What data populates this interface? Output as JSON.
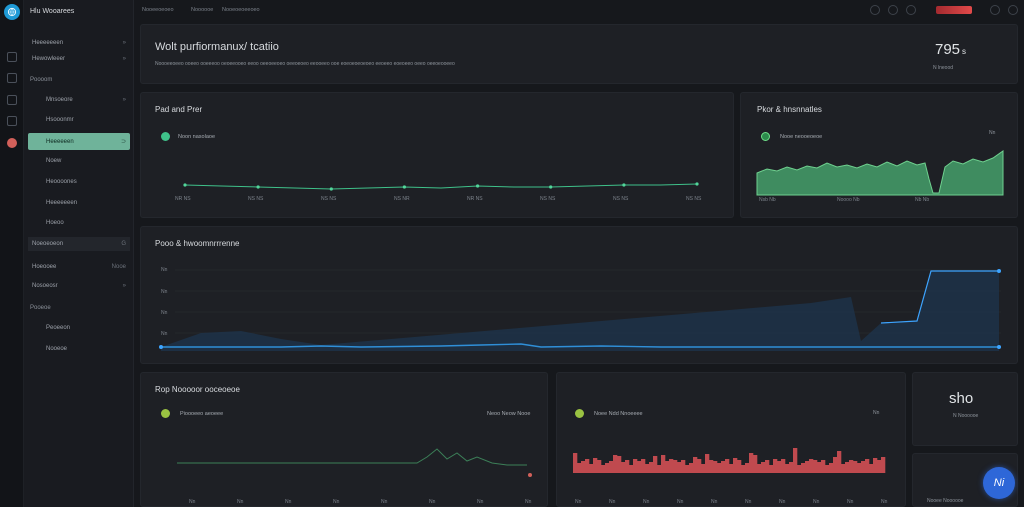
{
  "sidebar": {
    "title": "Hlu Wooarees",
    "items": [
      {
        "label": "Heeeeeeen",
        "chev": "»"
      },
      {
        "label": "Hewowleeer",
        "chev": "»"
      },
      {
        "label": "Mnsoeore",
        "chev": "»"
      },
      {
        "label": "Hsooonmr"
      },
      {
        "label": "Heeeeeen",
        "chev": "⊃"
      },
      {
        "label": "Noew"
      },
      {
        "label": "Heoooones"
      },
      {
        "label": "Heeeeeeen"
      },
      {
        "label": "Hoeoo"
      },
      {
        "label": "Noeoeoeon",
        "chev": "G"
      },
      {
        "label": "Hoeooee",
        "chev": "Nooe"
      },
      {
        "label": "Nosoeosr",
        "chev": "»"
      },
      {
        "label": "Peoeeon"
      },
      {
        "label": "Nooeoe"
      }
    ],
    "section_one": "Poooom",
    "section_two": "Pooeoe"
  },
  "topbar": {
    "links": [
      "Nooeeoeoeo",
      "Noooooe",
      "Nooeoeoeeoeo"
    ]
  },
  "header_panel": {
    "title": "Wolt purfiormanux/ tcatiio",
    "subtitle": "Noooeeoeeo ooeeo ooeeeoo oeoeeooeo eeoo oeeoeeoeo oeeoeoeo eeooeeo ooe eoeoeoeoeoeo eeoeeo eoeoeeo oeeo oeeoeooeeo",
    "stat_value": "795",
    "stat_unit": "s",
    "stat_caption": "N  lneood"
  },
  "panel_line_small": {
    "title": "Pad and Prer",
    "legend": "Noon nasolaoe",
    "ticks": [
      "NR NS",
      "NS NS",
      "NS NS",
      "NS NR",
      "NR NS",
      "NS NS",
      "NS NS",
      "NS NS"
    ]
  },
  "panel_area_green": {
    "title": "Pkor & hnsnnatles",
    "legend": "Nooe neooeoeoe",
    "corner": "Nn",
    "ticks": [
      "Nsb Nb",
      "Noooo Nb",
      "Nb Nb"
    ]
  },
  "panel_wide": {
    "title": "Pooo & hwoomnrrrenne",
    "yticks": [
      "Nn",
      "Nn",
      "Nn",
      "Nn"
    ]
  },
  "panel_bottom_left": {
    "title": "Rop Nooooor ooceoeoe",
    "legend": "Pioooeeo aeoeee",
    "legend_right": "Neoo Neow Nooe",
    "ticks": [
      "Nn",
      "Nn",
      "Nn",
      "Nn",
      "Nn",
      "Nn",
      "Nn",
      "Nn"
    ]
  },
  "panel_bottom_mid": {
    "legend": "Noee Ndd Nnoeeee",
    "corner": "Nn",
    "ticks": [
      "Nn",
      "Nn",
      "Nn",
      "Nn",
      "Nn",
      "Nn",
      "Nn",
      "Nn",
      "Nn",
      "Nn"
    ]
  },
  "stat_card_right": {
    "value": "sho",
    "caption": "N  Noooooe"
  },
  "stat_card_small": {
    "caption": "Nooee Noooooe"
  },
  "fab": {
    "label": "Ni"
  },
  "colors": {
    "accent_green": "#6fb39a",
    "line_blue": "#2f8fd8",
    "bar_red": "#c04a4f",
    "area_green": "#4e9e72"
  }
}
